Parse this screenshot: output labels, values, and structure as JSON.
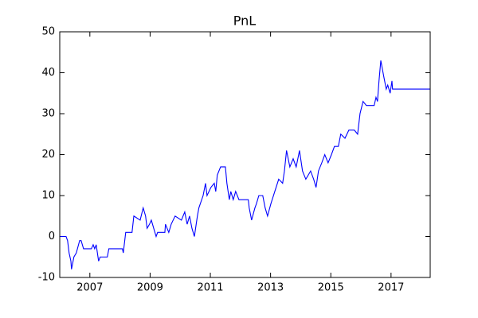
{
  "chart_data": {
    "type": "line",
    "title": "PnL",
    "x": [
      2006.0,
      2006.21,
      2006.26,
      2006.31,
      2006.37,
      2006.39,
      2006.47,
      2006.55,
      2006.66,
      2006.71,
      2006.79,
      2007.05,
      2007.11,
      2007.16,
      2007.21,
      2007.29,
      2007.34,
      2007.58,
      2007.63,
      2008.08,
      2008.11,
      2008.19,
      2008.4,
      2008.46,
      2008.67,
      2008.77,
      2008.85,
      2008.9,
      2008.98,
      2009.04,
      2009.12,
      2009.2,
      2009.25,
      2009.49,
      2009.51,
      2009.62,
      2009.7,
      2009.83,
      2010.04,
      2010.15,
      2010.23,
      2010.31,
      2010.39,
      2010.47,
      2010.57,
      2010.62,
      2010.76,
      2010.84,
      2010.89,
      2011.02,
      2011.13,
      2011.18,
      2011.23,
      2011.34,
      2011.5,
      2011.55,
      2011.63,
      2011.68,
      2011.76,
      2011.84,
      2011.95,
      2012.26,
      2012.29,
      2012.37,
      2012.48,
      2012.53,
      2012.61,
      2012.74,
      2012.82,
      2012.9,
      2013.01,
      2013.14,
      2013.27,
      2013.4,
      2013.46,
      2013.53,
      2013.64,
      2013.75,
      2013.85,
      2013.96,
      2014.06,
      2014.17,
      2014.33,
      2014.43,
      2014.51,
      2014.59,
      2014.7,
      2014.8,
      2014.91,
      2015.02,
      2015.12,
      2015.25,
      2015.33,
      2015.47,
      2015.6,
      2015.78,
      2015.89,
      2015.97,
      2016.07,
      2016.18,
      2016.44,
      2016.5,
      2016.55,
      2016.6,
      2016.66,
      2016.76,
      2016.84,
      2016.89,
      2016.97,
      2017.03,
      2017.05,
      2018.3
    ],
    "series": [
      {
        "color": "#0000ff",
        "values": [
          0,
          0,
          -1,
          -4,
          -6,
          -8,
          -5,
          -4,
          -1,
          -1,
          -3,
          -3,
          -2,
          -3,
          -2,
          -6,
          -5,
          -5,
          -3,
          -3,
          -4,
          1,
          1,
          5,
          4,
          7,
          5,
          2,
          3,
          4,
          2,
          0,
          1,
          1,
          3,
          1,
          3,
          5,
          4,
          6,
          3,
          5,
          2,
          0,
          5,
          7,
          10,
          13,
          10,
          12,
          13,
          11,
          15,
          17,
          17,
          13,
          9,
          11,
          9,
          11,
          9,
          9,
          7,
          4,
          7,
          8,
          10,
          10,
          7,
          5,
          8,
          11,
          14,
          13,
          16,
          21,
          17,
          19,
          17,
          21,
          16,
          14,
          16,
          14,
          12,
          16,
          18,
          20,
          18,
          20,
          22,
          22,
          25,
          24,
          26,
          26,
          25,
          30,
          33,
          32,
          32,
          34,
          33,
          38,
          43,
          39,
          36,
          37,
          35,
          38,
          36,
          36
        ]
      }
    ],
    "xlim": [
      2006.0,
      2018.3
    ],
    "xticks": [
      2007,
      2009,
      2011,
      2013,
      2015,
      2017
    ],
    "ylim": [
      -10,
      50
    ],
    "yticks": [
      -10,
      0,
      10,
      20,
      30,
      40,
      50
    ],
    "grid": false
  }
}
